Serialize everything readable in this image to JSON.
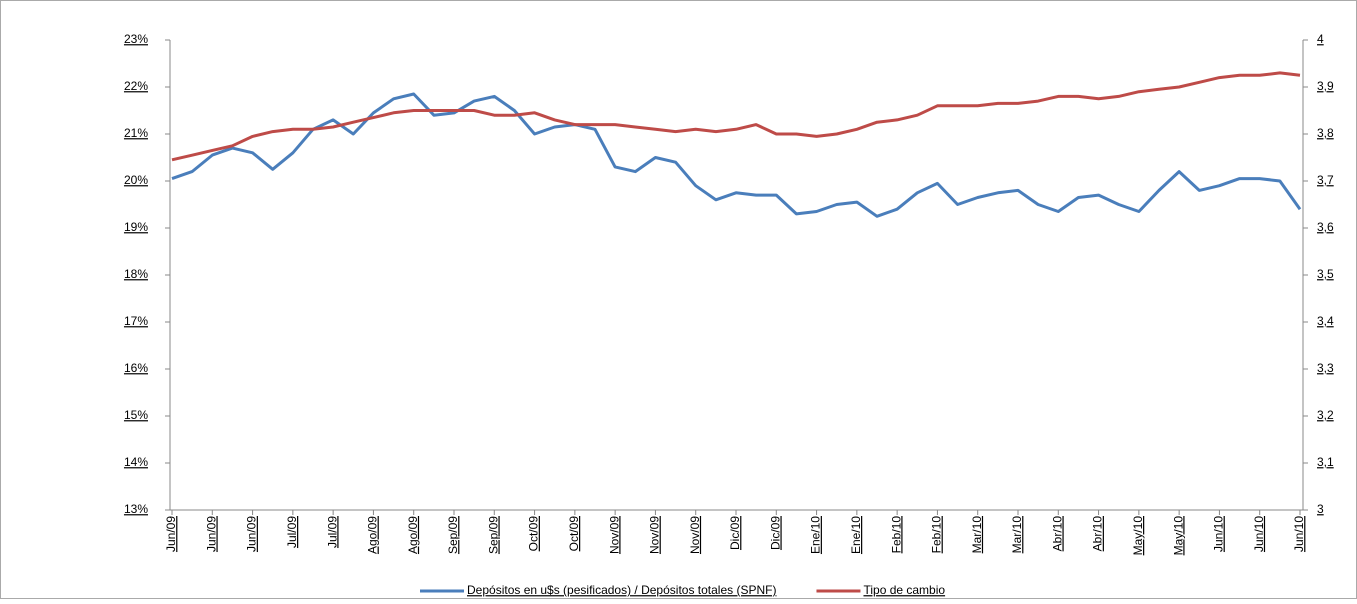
{
  "chart_data": {
    "type": "line",
    "categories": [
      "Jun/09",
      null,
      "Jun/09",
      null,
      "Jun/09",
      null,
      "Jul/09",
      null,
      "Jul/09",
      null,
      "Ago/09",
      null,
      "Ago/09",
      null,
      "Sep/09",
      null,
      "Sep/09",
      null,
      "Oct/09",
      null,
      "Oct/09",
      null,
      "Nov/09",
      null,
      "Nov/09",
      null,
      "Nov/09",
      null,
      "Dic/09",
      null,
      "Dic/09",
      null,
      "Ene/10",
      null,
      "Ene/10",
      null,
      "Feb/10",
      null,
      "Feb/10",
      null,
      "Mar/10",
      null,
      "Mar/10",
      null,
      "Abr/10",
      null,
      "Abr/10",
      null,
      "May/10",
      null,
      "May/10",
      null,
      "Jun/10",
      null,
      "Jun/10",
      null,
      "Jun/10"
    ],
    "series": [
      {
        "name": "Depósitos en u$s (pesificados) / Depósitos totales (SPNF)",
        "color": "#4a7ebb",
        "values": [
          20.05,
          20.2,
          20.55,
          20.7,
          20.6,
          20.25,
          20.6,
          21.1,
          21.3,
          21.0,
          21.45,
          21.75,
          21.85,
          21.4,
          21.45,
          21.7,
          21.8,
          21.5,
          21.0,
          21.15,
          21.2,
          21.1,
          20.3,
          20.2,
          20.5,
          20.4,
          19.9,
          19.6,
          19.75,
          19.7,
          19.7,
          19.3,
          19.35,
          19.5,
          19.55,
          19.25,
          19.4,
          19.75,
          19.95,
          19.5,
          19.65,
          19.75,
          19.8,
          19.5,
          19.35,
          19.65,
          19.7,
          19.5,
          19.35,
          19.8,
          20.2,
          19.8,
          19.9,
          20.05,
          20.05,
          20.0,
          19.4
        ]
      },
      {
        "name": "Tipo de cambio",
        "color": "#be4b48",
        "axis": "y2",
        "values": [
          3.745,
          3.755,
          3.765,
          3.775,
          3.795,
          3.805,
          3.81,
          3.81,
          3.815,
          3.825,
          3.835,
          3.845,
          3.85,
          3.85,
          3.85,
          3.85,
          3.84,
          3.84,
          3.845,
          3.83,
          3.82,
          3.82,
          3.82,
          3.815,
          3.81,
          3.805,
          3.81,
          3.805,
          3.81,
          3.82,
          3.8,
          3.8,
          3.795,
          3.8,
          3.81,
          3.825,
          3.83,
          3.84,
          3.86,
          3.86,
          3.86,
          3.865,
          3.865,
          3.87,
          3.88,
          3.88,
          3.875,
          3.88,
          3.89,
          3.895,
          3.9,
          3.91,
          3.92,
          3.925,
          3.925,
          3.93,
          3.925
        ]
      }
    ],
    "ylim": [
      13,
      23
    ],
    "yticks": [
      {
        "value": 13,
        "label": "13%"
      },
      {
        "value": 14,
        "label": "14%"
      },
      {
        "value": 15,
        "label": "15%"
      },
      {
        "value": 16,
        "label": "16%"
      },
      {
        "value": 17,
        "label": "17%"
      },
      {
        "value": 18,
        "label": "18%"
      },
      {
        "value": 19,
        "label": "19%"
      },
      {
        "value": 20,
        "label": "20%"
      },
      {
        "value": 21,
        "label": "21%"
      },
      {
        "value": 22,
        "label": "22%"
      },
      {
        "value": 23,
        "label": "23%"
      }
    ],
    "y2lim": [
      3,
      4
    ],
    "y2ticks": [
      3,
      {
        "value": 3.1,
        "label": "3,1"
      },
      {
        "value": 3.2,
        "label": "3,2"
      },
      {
        "value": 3.3,
        "label": "3,3"
      },
      {
        "value": 3.4,
        "label": "3,4"
      },
      {
        "value": 3.5,
        "label": "3,5"
      },
      {
        "value": 3.6,
        "label": "3,6"
      },
      {
        "value": 3.7,
        "label": "3,7"
      },
      {
        "value": 3.8,
        "label": "3,8"
      },
      {
        "value": 3.9,
        "label": "3,9"
      },
      4
    ],
    "legend": "bottom"
  }
}
